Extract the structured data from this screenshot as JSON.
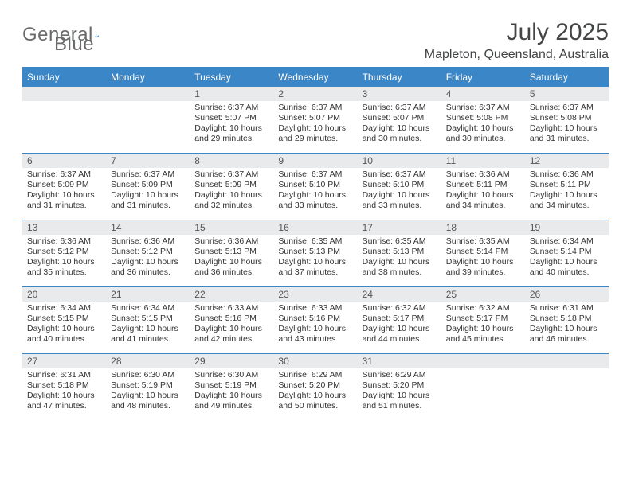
{
  "brand": {
    "text_general": "General",
    "text_blue": "Blue",
    "logo_color": "#2f77b8"
  },
  "header": {
    "month_title": "July 2025",
    "location": "Mapleton, Queensland, Australia"
  },
  "colors": {
    "accent": "#3b86c6",
    "header_text": "#ffffff",
    "daynum_bg": "#e9eaeb",
    "text": "#333333",
    "title_text": "#434445",
    "logo_text": "#6a6b6c"
  },
  "fonts": {
    "title_size_pt": 22,
    "location_size_pt": 12,
    "dayhead_size_pt": 9,
    "body_size_pt": 8
  },
  "calendar": {
    "day_headers": [
      "Sunday",
      "Monday",
      "Tuesday",
      "Wednesday",
      "Thursday",
      "Friday",
      "Saturday"
    ],
    "weeks": [
      [
        {
          "n": "",
          "sunrise": "",
          "sunset": "",
          "daylight": ""
        },
        {
          "n": "",
          "sunrise": "",
          "sunset": "",
          "daylight": ""
        },
        {
          "n": "1",
          "sunrise": "Sunrise: 6:37 AM",
          "sunset": "Sunset: 5:07 PM",
          "daylight": "Daylight: 10 hours and 29 minutes."
        },
        {
          "n": "2",
          "sunrise": "Sunrise: 6:37 AM",
          "sunset": "Sunset: 5:07 PM",
          "daylight": "Daylight: 10 hours and 29 minutes."
        },
        {
          "n": "3",
          "sunrise": "Sunrise: 6:37 AM",
          "sunset": "Sunset: 5:07 PM",
          "daylight": "Daylight: 10 hours and 30 minutes."
        },
        {
          "n": "4",
          "sunrise": "Sunrise: 6:37 AM",
          "sunset": "Sunset: 5:08 PM",
          "daylight": "Daylight: 10 hours and 30 minutes."
        },
        {
          "n": "5",
          "sunrise": "Sunrise: 6:37 AM",
          "sunset": "Sunset: 5:08 PM",
          "daylight": "Daylight: 10 hours and 31 minutes."
        }
      ],
      [
        {
          "n": "6",
          "sunrise": "Sunrise: 6:37 AM",
          "sunset": "Sunset: 5:09 PM",
          "daylight": "Daylight: 10 hours and 31 minutes."
        },
        {
          "n": "7",
          "sunrise": "Sunrise: 6:37 AM",
          "sunset": "Sunset: 5:09 PM",
          "daylight": "Daylight: 10 hours and 31 minutes."
        },
        {
          "n": "8",
          "sunrise": "Sunrise: 6:37 AM",
          "sunset": "Sunset: 5:09 PM",
          "daylight": "Daylight: 10 hours and 32 minutes."
        },
        {
          "n": "9",
          "sunrise": "Sunrise: 6:37 AM",
          "sunset": "Sunset: 5:10 PM",
          "daylight": "Daylight: 10 hours and 33 minutes."
        },
        {
          "n": "10",
          "sunrise": "Sunrise: 6:37 AM",
          "sunset": "Sunset: 5:10 PM",
          "daylight": "Daylight: 10 hours and 33 minutes."
        },
        {
          "n": "11",
          "sunrise": "Sunrise: 6:36 AM",
          "sunset": "Sunset: 5:11 PM",
          "daylight": "Daylight: 10 hours and 34 minutes."
        },
        {
          "n": "12",
          "sunrise": "Sunrise: 6:36 AM",
          "sunset": "Sunset: 5:11 PM",
          "daylight": "Daylight: 10 hours and 34 minutes."
        }
      ],
      [
        {
          "n": "13",
          "sunrise": "Sunrise: 6:36 AM",
          "sunset": "Sunset: 5:12 PM",
          "daylight": "Daylight: 10 hours and 35 minutes."
        },
        {
          "n": "14",
          "sunrise": "Sunrise: 6:36 AM",
          "sunset": "Sunset: 5:12 PM",
          "daylight": "Daylight: 10 hours and 36 minutes."
        },
        {
          "n": "15",
          "sunrise": "Sunrise: 6:36 AM",
          "sunset": "Sunset: 5:13 PM",
          "daylight": "Daylight: 10 hours and 36 minutes."
        },
        {
          "n": "16",
          "sunrise": "Sunrise: 6:35 AM",
          "sunset": "Sunset: 5:13 PM",
          "daylight": "Daylight: 10 hours and 37 minutes."
        },
        {
          "n": "17",
          "sunrise": "Sunrise: 6:35 AM",
          "sunset": "Sunset: 5:13 PM",
          "daylight": "Daylight: 10 hours and 38 minutes."
        },
        {
          "n": "18",
          "sunrise": "Sunrise: 6:35 AM",
          "sunset": "Sunset: 5:14 PM",
          "daylight": "Daylight: 10 hours and 39 minutes."
        },
        {
          "n": "19",
          "sunrise": "Sunrise: 6:34 AM",
          "sunset": "Sunset: 5:14 PM",
          "daylight": "Daylight: 10 hours and 40 minutes."
        }
      ],
      [
        {
          "n": "20",
          "sunrise": "Sunrise: 6:34 AM",
          "sunset": "Sunset: 5:15 PM",
          "daylight": "Daylight: 10 hours and 40 minutes."
        },
        {
          "n": "21",
          "sunrise": "Sunrise: 6:34 AM",
          "sunset": "Sunset: 5:15 PM",
          "daylight": "Daylight: 10 hours and 41 minutes."
        },
        {
          "n": "22",
          "sunrise": "Sunrise: 6:33 AM",
          "sunset": "Sunset: 5:16 PM",
          "daylight": "Daylight: 10 hours and 42 minutes."
        },
        {
          "n": "23",
          "sunrise": "Sunrise: 6:33 AM",
          "sunset": "Sunset: 5:16 PM",
          "daylight": "Daylight: 10 hours and 43 minutes."
        },
        {
          "n": "24",
          "sunrise": "Sunrise: 6:32 AM",
          "sunset": "Sunset: 5:17 PM",
          "daylight": "Daylight: 10 hours and 44 minutes."
        },
        {
          "n": "25",
          "sunrise": "Sunrise: 6:32 AM",
          "sunset": "Sunset: 5:17 PM",
          "daylight": "Daylight: 10 hours and 45 minutes."
        },
        {
          "n": "26",
          "sunrise": "Sunrise: 6:31 AM",
          "sunset": "Sunset: 5:18 PM",
          "daylight": "Daylight: 10 hours and 46 minutes."
        }
      ],
      [
        {
          "n": "27",
          "sunrise": "Sunrise: 6:31 AM",
          "sunset": "Sunset: 5:18 PM",
          "daylight": "Daylight: 10 hours and 47 minutes."
        },
        {
          "n": "28",
          "sunrise": "Sunrise: 6:30 AM",
          "sunset": "Sunset: 5:19 PM",
          "daylight": "Daylight: 10 hours and 48 minutes."
        },
        {
          "n": "29",
          "sunrise": "Sunrise: 6:30 AM",
          "sunset": "Sunset: 5:19 PM",
          "daylight": "Daylight: 10 hours and 49 minutes."
        },
        {
          "n": "30",
          "sunrise": "Sunrise: 6:29 AM",
          "sunset": "Sunset: 5:20 PM",
          "daylight": "Daylight: 10 hours and 50 minutes."
        },
        {
          "n": "31",
          "sunrise": "Sunrise: 6:29 AM",
          "sunset": "Sunset: 5:20 PM",
          "daylight": "Daylight: 10 hours and 51 minutes."
        },
        {
          "n": "",
          "sunrise": "",
          "sunset": "",
          "daylight": ""
        },
        {
          "n": "",
          "sunrise": "",
          "sunset": "",
          "daylight": ""
        }
      ]
    ]
  }
}
